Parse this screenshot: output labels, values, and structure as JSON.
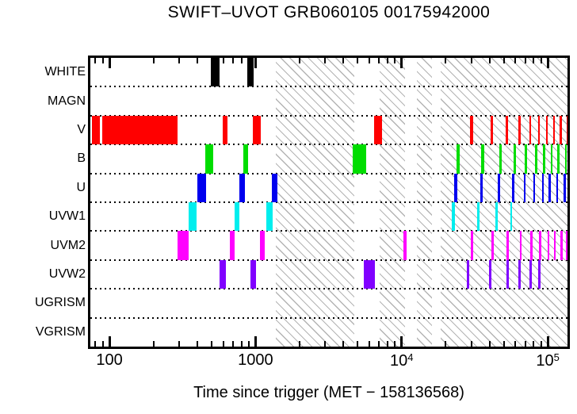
{
  "title": "SWIFT–UVOT GRB060105 00175942000",
  "xlabel": "Time since trigger (MET − 158136568)",
  "chart_data": {
    "type": "interval-timeline",
    "title": "SWIFT–UVOT GRB060105 00175942000",
    "xlabel": "Time since trigger (MET − 158136568)",
    "background": "#ffffff",
    "hatch_line_color": "#b4b4b4",
    "x_axis": {
      "scale": "log",
      "min": 74,
      "max": 136500,
      "major_ticks": [
        {
          "value": 100,
          "label": "100"
        },
        {
          "value": 1000,
          "label": "1000"
        },
        {
          "value": 10000,
          "label": "10",
          "sup": "4"
        },
        {
          "value": 100000,
          "label": "10",
          "sup": "5"
        }
      ],
      "minor_ticks": [
        80,
        90,
        200,
        300,
        400,
        500,
        600,
        700,
        800,
        900,
        2000,
        3000,
        4000,
        5000,
        6000,
        7000,
        8000,
        9000,
        20000,
        30000,
        40000,
        50000,
        60000,
        70000,
        80000,
        90000
      ]
    },
    "hatch_bands": [
      [
        1382,
        4720
      ],
      [
        7085,
        10600
      ],
      [
        12780,
        16050
      ],
      [
        18600,
        136500
      ]
    ],
    "rows": [
      {
        "label": "WHITE",
        "color": "#000000",
        "intervals": [
          [
            492,
            569
          ],
          [
            879,
            976
          ]
        ]
      },
      {
        "label": "MAGN",
        "color": "#000000",
        "intervals": []
      },
      {
        "label": "V",
        "color": "#ff0000",
        "intervals": [
          [
            76,
            86
          ],
          [
            89,
            291
          ],
          [
            593,
            644
          ],
          [
            955,
            1082
          ],
          [
            6485,
            7296
          ],
          [
            29280,
            30930
          ],
          [
            40460,
            42215
          ],
          [
            51790,
            53430
          ],
          [
            63090,
            65140
          ],
          [
            74570,
            77090
          ],
          [
            85540,
            88700
          ],
          [
            96930,
            99400
          ],
          [
            109000,
            111400
          ],
          [
            120500,
            123000
          ],
          [
            134300,
            136500
          ]
        ]
      },
      {
        "label": "B",
        "color": "#00dd00",
        "intervals": [
          [
            455,
            513
          ],
          [
            820,
            890
          ],
          [
            4625,
            5695
          ],
          [
            23800,
            25100
          ],
          [
            35000,
            36850
          ],
          [
            46900,
            48650
          ],
          [
            58230,
            60300
          ],
          [
            69830,
            72260
          ],
          [
            82000,
            83300
          ],
          [
            93200,
            96300
          ],
          [
            104900,
            106200
          ],
          [
            116300,
            119200
          ],
          [
            131000,
            133100
          ]
        ]
      },
      {
        "label": "U",
        "color": "#0000ee",
        "intervals": [
          [
            400,
            457
          ],
          [
            776,
            844
          ],
          [
            1287,
            1417
          ],
          [
            22800,
            24050
          ],
          [
            34550,
            35950
          ],
          [
            45650,
            47450
          ],
          [
            57000,
            58700
          ],
          [
            68500,
            70200
          ],
          [
            79300,
            81600
          ],
          [
            91000,
            92400
          ],
          [
            101700,
            104100
          ],
          [
            114300,
            116600
          ],
          [
            129000,
            131600
          ]
        ]
      },
      {
        "label": "UVW1",
        "color": "#00eeee",
        "intervals": [
          [
            349,
            395
          ],
          [
            715,
            776
          ],
          [
            1190,
            1315
          ],
          [
            21900,
            23100
          ],
          [
            32900,
            34300
          ],
          [
            44000,
            45650
          ],
          [
            55400,
            57000
          ]
        ]
      },
      {
        "label": "UVM2",
        "color": "#ff00ff",
        "intervals": [
          [
            293,
            348
          ],
          [
            663,
            720
          ],
          [
            1073,
            1161
          ],
          [
            10280,
            10790
          ],
          [
            29600,
            30800
          ],
          [
            41350,
            42550
          ],
          [
            52400,
            53900
          ],
          [
            64400,
            66000
          ],
          [
            76000,
            78000
          ],
          [
            87500,
            89350
          ],
          [
            99600,
            100900
          ],
          [
            110300,
            112200
          ],
          [
            122600,
            124200
          ],
          [
            133100,
            135900
          ]
        ]
      },
      {
        "label": "UVW2",
        "color": "#8000ff",
        "intervals": [
          [
            569,
            626
          ],
          [
            928,
            1004
          ],
          [
            5523,
            6525
          ],
          [
            28000,
            29100
          ],
          [
            39830,
            41200
          ],
          [
            52400,
            53800
          ],
          [
            63100,
            64400
          ],
          [
            75150,
            76700
          ],
          [
            86200,
            87900
          ]
        ]
      },
      {
        "label": "UGRISM",
        "color": "#000000",
        "intervals": []
      },
      {
        "label": "VGRISM",
        "color": "#000000",
        "intervals": []
      }
    ]
  }
}
